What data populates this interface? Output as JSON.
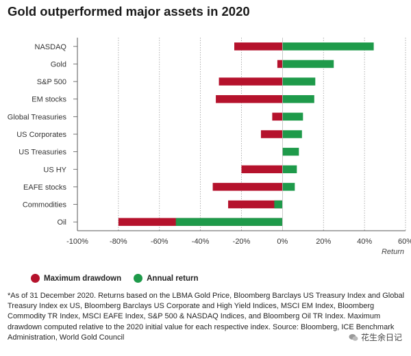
{
  "title": "Gold outperformed major assets in 2020",
  "colors": {
    "drawdown": "#b5122c",
    "return": "#1e9a4a",
    "grid": "#9a9a9a",
    "axis": "#555555"
  },
  "legend": {
    "drawdown_label": "Maximum drawdown",
    "return_label": "Annual return"
  },
  "footnote": "*As of 31 December 2020. Returns based on the LBMA Gold Price, Bloomberg Barclays US Treasury Index and Global Treasury Index ex US, Bloomberg Barclays US Corporate and High Yield Indices, MSCI EM Index, Bloomberg Commodity TR Index, MSCI EAFE Index, S&P 500 & NASDAQ Indices, and Bloomberg Oil TR Index. Maximum drawdown computed relative to the 2020 initial value for each respective index. Source: Bloomberg, ICE Benchmark Administration, World Gold Council",
  "watermark": {
    "text": "花生余日记",
    "icon": "wechat-icon"
  },
  "chart_data": {
    "type": "bar",
    "orientation": "horizontal",
    "stacking": "overlay",
    "categories": [
      "NASDAQ",
      "Gold",
      "S&P 500",
      "EM stocks",
      "Global Treasuries",
      "US Corporates",
      "US Treasuries",
      "US HY",
      "EAFE stocks",
      "Commodities",
      "Oil"
    ],
    "series": [
      {
        "name": "Maximum drawdown",
        "values": [
          -23.5,
          -2.5,
          -31,
          -32.5,
          -5,
          -10.5,
          0,
          -20,
          -34,
          -26.5,
          -80
        ]
      },
      {
        "name": "Annual return",
        "values": [
          44.5,
          25,
          16,
          15.5,
          10,
          9.5,
          8,
          7,
          6,
          -4,
          -52
        ]
      }
    ],
    "xlim": [
      -100,
      60
    ],
    "xticks": [
      -100,
      -80,
      -60,
      -40,
      -20,
      0,
      20,
      40,
      60
    ],
    "xtick_labels": [
      "-100%",
      "-80%",
      "-60%",
      "-40%",
      "-20%",
      "0%",
      "20%",
      "40%",
      "60%"
    ],
    "xlabel": "Return",
    "ylabel": "",
    "grid": true,
    "legend_position": "bottom-left"
  }
}
